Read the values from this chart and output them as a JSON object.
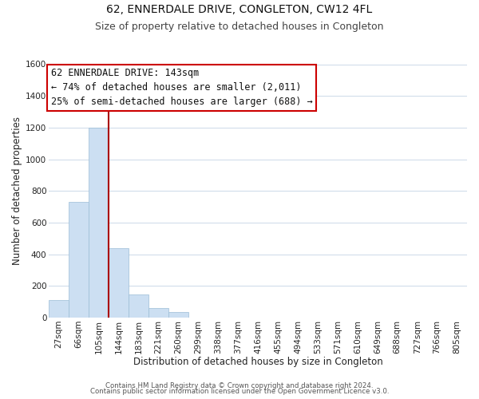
{
  "title": "62, ENNERDALE DRIVE, CONGLETON, CW12 4FL",
  "subtitle": "Size of property relative to detached houses in Congleton",
  "xlabel": "Distribution of detached houses by size in Congleton",
  "ylabel": "Number of detached properties",
  "bin_labels": [
    "27sqm",
    "66sqm",
    "105sqm",
    "144sqm",
    "183sqm",
    "221sqm",
    "260sqm",
    "299sqm",
    "338sqm",
    "377sqm",
    "416sqm",
    "455sqm",
    "494sqm",
    "533sqm",
    "571sqm",
    "610sqm",
    "649sqm",
    "688sqm",
    "727sqm",
    "766sqm",
    "805sqm"
  ],
  "bar_heights": [
    110,
    730,
    1200,
    440,
    145,
    60,
    35,
    0,
    0,
    0,
    0,
    0,
    0,
    0,
    0,
    0,
    0,
    0,
    0,
    0,
    0
  ],
  "bar_color": "#ccdff2",
  "bar_edge_color": "#9bbdd6",
  "marker_bin_index": 3,
  "marker_line_color": "#aa0000",
  "ylim": [
    0,
    1600
  ],
  "yticks": [
    0,
    200,
    400,
    600,
    800,
    1000,
    1200,
    1400,
    1600
  ],
  "annotation_title": "62 ENNERDALE DRIVE: 143sqm",
  "annotation_line1": "← 74% of detached houses are smaller (2,011)",
  "annotation_line2": "25% of semi-detached houses are larger (688) →",
  "annotation_box_color": "#ffffff",
  "annotation_border_color": "#cc0000",
  "footer_line1": "Contains HM Land Registry data © Crown copyright and database right 2024.",
  "footer_line2": "Contains public sector information licensed under the Open Government Licence v3.0.",
  "background_color": "#ffffff",
  "grid_color": "#ccd9e8",
  "title_fontsize": 10,
  "subtitle_fontsize": 9,
  "axis_label_fontsize": 8.5,
  "tick_fontsize": 7.5,
  "annotation_fontsize": 8.5
}
